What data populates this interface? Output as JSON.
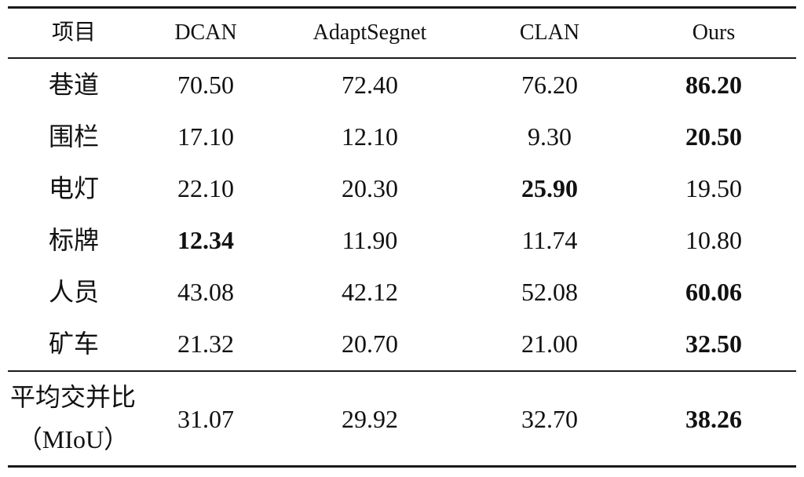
{
  "table": {
    "headers": [
      "项目",
      "DCAN",
      "AdaptSegnet",
      "CLAN",
      "Ours"
    ],
    "rows": [
      {
        "label": "巷道",
        "values": [
          "70.50",
          "72.40",
          "76.20",
          "86.20"
        ],
        "bold_index": 3
      },
      {
        "label": "围栏",
        "values": [
          "17.10",
          "12.10",
          "9.30",
          "20.50"
        ],
        "bold_index": 3
      },
      {
        "label": "电灯",
        "values": [
          "22.10",
          "20.30",
          "25.90",
          "19.50"
        ],
        "bold_index": 2
      },
      {
        "label": "标牌",
        "values": [
          "12.34",
          "11.90",
          "11.74",
          "10.80"
        ],
        "bold_index": 0
      },
      {
        "label": "人员",
        "values": [
          "43.08",
          "42.12",
          "52.08",
          "60.06"
        ],
        "bold_index": 3
      },
      {
        "label": "矿车",
        "values": [
          "21.32",
          "20.70",
          "21.00",
          "32.50"
        ],
        "bold_index": 3
      }
    ],
    "footer": {
      "label_line1": "平均交并比",
      "label_line2": "（MIoU）",
      "values": [
        "31.07",
        "29.92",
        "32.70",
        "38.26"
      ],
      "bold_index": 3
    }
  }
}
